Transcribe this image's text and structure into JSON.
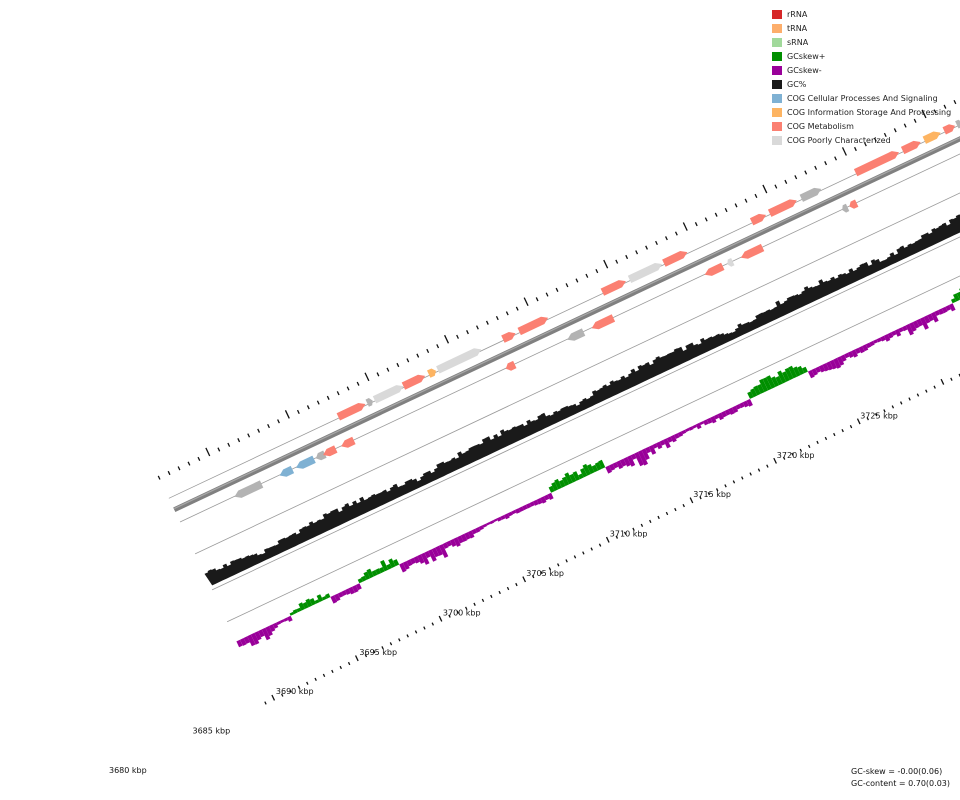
{
  "legend": [
    {
      "label": "rRNA",
      "color": "#d62728"
    },
    {
      "label": "tRNA",
      "color": "#fdae6b"
    },
    {
      "label": "sRNA",
      "color": "#a1d99b"
    },
    {
      "label": "GCskew+",
      "color": "#008f00"
    },
    {
      "label": "GCskew-",
      "color": "#990099"
    },
    {
      "label": "GC%",
      "color": "#1a1a1a"
    },
    {
      "label": "COG Cellular Processes And Signaling",
      "color": "#7fb1d3"
    },
    {
      "label": "COG Information Storage And Processing",
      "color": "#fdb462"
    },
    {
      "label": "COG Metabolism",
      "color": "#fb8072"
    },
    {
      "label": "COG Poorly Characterized",
      "color": "#d9d9d9"
    }
  ],
  "ticks": [
    {
      "pos": 3680,
      "label": "3680 kbp"
    },
    {
      "pos": 3685,
      "label": "3685 kbp"
    },
    {
      "pos": 3690,
      "label": "3690 kbp"
    },
    {
      "pos": 3695,
      "label": "3695 kbp"
    },
    {
      "pos": 3700,
      "label": "3700 kbp"
    },
    {
      "pos": 3705,
      "label": "3705 kbp"
    },
    {
      "pos": 3710,
      "label": "3710 kbp"
    },
    {
      "pos": 3715,
      "label": "3715 kbp"
    },
    {
      "pos": 3720,
      "label": "3720 kbp"
    },
    {
      "pos": 3725,
      "label": "3725 kbp"
    }
  ],
  "stats": {
    "gc_skew": "GC-skew = -0.00(0.06)",
    "gc_content": "GC-content = 0.70(0.03)"
  },
  "colors": {
    "metabolism": "#fb8072",
    "cellular": "#7fb1d3",
    "info": "#fdb462",
    "poor": "#d9d9d9",
    "unassigned": "#b3b3b3",
    "backbone": "#808080",
    "gc": "#1a1a1a",
    "skew_pos": "#008f00",
    "skew_neg": "#990099"
  }
}
